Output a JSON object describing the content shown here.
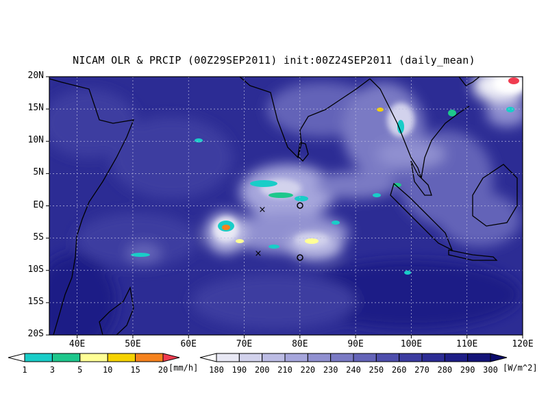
{
  "title": "NICAM OLR & PRCIP (00Z29SEP2011) init:00Z24SEP2011 (daily_mean)",
  "lat_labels": [
    "20N",
    "15N",
    "10N",
    "5N",
    "EQ",
    "5S",
    "10S",
    "15S",
    "20S"
  ],
  "lon_labels": [
    "40E",
    "50E",
    "60E",
    "70E",
    "80E",
    "90E",
    "100E",
    "110E",
    "120E"
  ],
  "precip_colorbar": {
    "labels": [
      "1",
      "3",
      "5",
      "10",
      "15",
      "20"
    ],
    "unit": "[mm/h]",
    "colors": [
      "#19cdc8",
      "#1ec78c",
      "#ffff96",
      "#f5d200",
      "#f5821e",
      "#f03c50"
    ]
  },
  "olr_colorbar": {
    "labels": [
      "180",
      "190",
      "200",
      "210",
      "220",
      "230",
      "240",
      "250",
      "260",
      "270",
      "280",
      "290",
      "300"
    ],
    "unit": "[W/m^2]",
    "colors": [
      "#e8e8f4",
      "#d2d2ec",
      "#bcbce4",
      "#a6a6dc",
      "#9090d0",
      "#7a7ac4",
      "#6464b8",
      "#4e4eac",
      "#3c3ca0",
      "#2c2c94",
      "#1e1e86",
      "#141478",
      "#0a0a6a"
    ]
  },
  "markers": {
    "cross_symbol": "×",
    "circle_symbol": "o"
  }
}
